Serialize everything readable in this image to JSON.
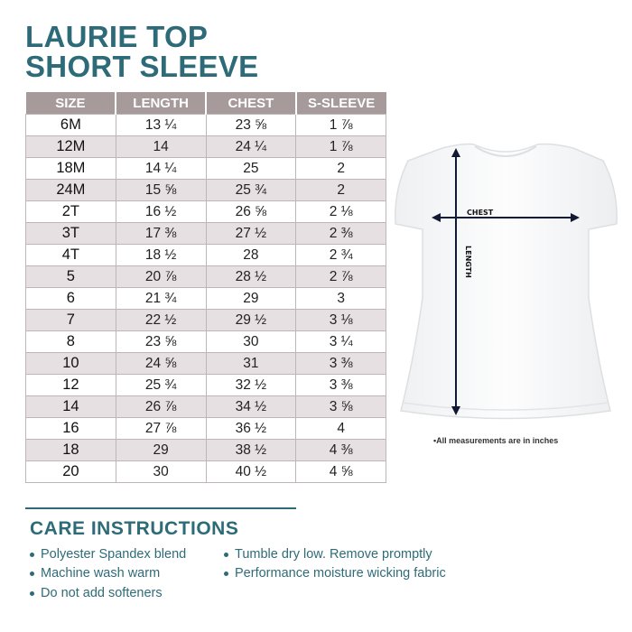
{
  "title": {
    "line1": "LAURIE TOP",
    "line2": "SHORT SLEEVE"
  },
  "colors": {
    "accent": "#2e6b78",
    "header_bg": "#a69a9a",
    "alt_row": "#e6e0e2"
  },
  "table": {
    "headers": [
      "SIZE",
      "LENGTH",
      "CHEST",
      "S-SLEEVE"
    ],
    "rows": [
      [
        "6M",
        "13 ¼",
        "23 ⅝",
        "1 ⅞"
      ],
      [
        "12M",
        "14",
        "24 ¼",
        "1 ⅞"
      ],
      [
        "18M",
        "14 ¼",
        "25",
        "2"
      ],
      [
        "24M",
        "15 ⅝",
        "25 ¾",
        "2"
      ],
      [
        "2T",
        "16 ½",
        "26 ⅝",
        "2 ⅛"
      ],
      [
        "3T",
        "17 ⅜",
        "27 ½",
        "2 ⅜"
      ],
      [
        "4T",
        "18 ½",
        "28",
        "2 ¾"
      ],
      [
        "5",
        "20 ⅞",
        "28 ½",
        "2 ⅞"
      ],
      [
        "6",
        "21 ¾",
        "29",
        "3"
      ],
      [
        "7",
        "22 ½",
        "29 ½",
        "3 ⅛"
      ],
      [
        "8",
        "23 ⅝",
        "30",
        "3 ¼"
      ],
      [
        "10",
        "24 ⅝",
        "31",
        "3 ⅜"
      ],
      [
        "12",
        "25 ¾",
        "32 ½",
        "3 ⅜"
      ],
      [
        "14",
        "26 ⅞",
        "34 ½",
        "3 ⅝"
      ],
      [
        "16",
        "27 ⅞",
        "36 ½",
        "4"
      ],
      [
        "18",
        "29",
        "38 ½",
        "4 ⅜"
      ],
      [
        "20",
        "30",
        "40 ½",
        "4 ⅝"
      ]
    ]
  },
  "diagram": {
    "chest_label": "CHEST",
    "length_label": "LENGTH",
    "note": "•All measurements are in inches"
  },
  "care": {
    "title": "CARE INSTRUCTIONS",
    "items": [
      "Polyester Spandex blend",
      "Tumble dry low. Remove promptly",
      "Machine wash warm",
      "Performance moisture wicking fabric",
      "Do not add softeners"
    ]
  }
}
